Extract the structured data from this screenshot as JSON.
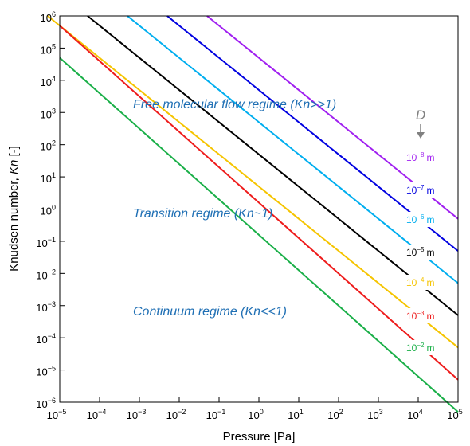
{
  "chart_data": {
    "type": "line",
    "xlabel": "Pressure [Pa]",
    "ylabel": "Knudsen number, Kn [-]",
    "ylabel_prefix": "Knudsen number, ",
    "ylabel_italic": "Kn",
    "ylabel_suffix": " [-]",
    "xscale": "log",
    "yscale": "log",
    "xlim": [
      1e-05,
      100000
    ],
    "ylim": [
      1e-06,
      1000000
    ],
    "x_tick_exponents": [
      -5,
      -4,
      -3,
      -2,
      -1,
      0,
      1,
      2,
      3,
      4,
      5
    ],
    "y_tick_exponents": [
      -6,
      -5,
      -4,
      -3,
      -2,
      -1,
      0,
      1,
      2,
      3,
      4,
      5,
      6
    ],
    "tick_base": "10",
    "grid": false,
    "legend_header": "D",
    "annotations": [
      {
        "text": "Free molecular flow regime (Kn>>1)",
        "color": "#1f6fb4"
      },
      {
        "text": "Transition regime (Kn~1)",
        "color": "#1f6fb4"
      },
      {
        "text": "Continuum regime (Kn<<1)",
        "color": "#1f6fb4"
      }
    ],
    "series": [
      {
        "name": "10^-8 m",
        "base": "10",
        "exp": "−8",
        "unit": "m",
        "color": "#a020f0",
        "x": [
          0.05,
          100000
        ],
        "y": [
          1000000,
          0.5
        ]
      },
      {
        "name": "10^-7 m",
        "base": "10",
        "exp": "−7",
        "unit": "m",
        "color": "#0000e0",
        "x": [
          0.005,
          100000
        ],
        "y": [
          1000000,
          0.05
        ]
      },
      {
        "name": "10^-6 m",
        "base": "10",
        "exp": "−6",
        "unit": "m",
        "color": "#00aeef",
        "x": [
          0.0005,
          100000
        ],
        "y": [
          1000000,
          0.005
        ]
      },
      {
        "name": "10^-5 m",
        "base": "10",
        "exp": "−5",
        "unit": "m",
        "color": "#000000",
        "x": [
          5e-05,
          100000
        ],
        "y": [
          1000000,
          0.0005
        ]
      },
      {
        "name": "10^-4 m",
        "base": "10",
        "exp": "−4",
        "unit": "m",
        "color": "#f5c400",
        "x": [
          5e-06,
          100000
        ],
        "y": [
          1000000,
          5e-05
        ]
      },
      {
        "name": "10^-3 m",
        "base": "10",
        "exp": "−3",
        "unit": "m",
        "color": "#ee1c1c",
        "x": [
          1e-05,
          100000
        ],
        "y": [
          500000,
          5e-06
        ]
      },
      {
        "name": "10^-2 m",
        "base": "10",
        "exp": "−2",
        "unit": "m",
        "color": "#1aaf48",
        "x": [
          1e-05,
          100000
        ],
        "y": [
          50000,
          5e-07
        ]
      }
    ]
  }
}
